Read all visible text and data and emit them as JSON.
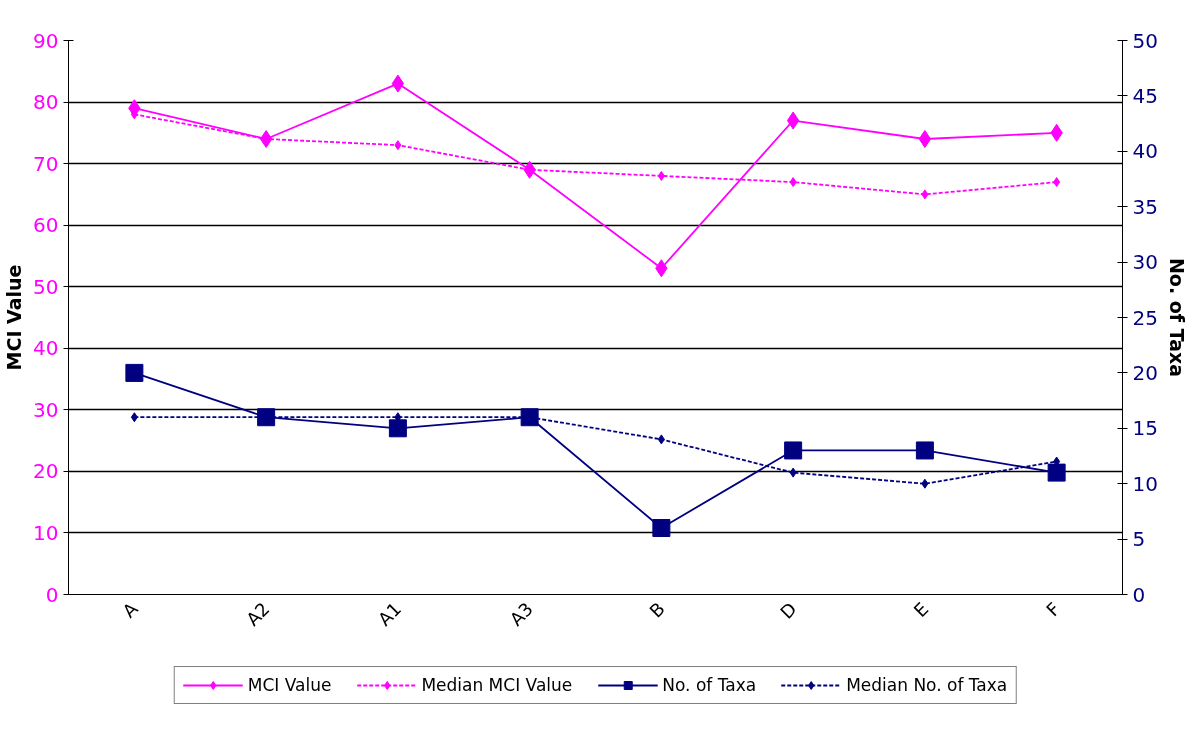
{
  "chart_data": {
    "type": "line",
    "categories": [
      "A",
      "A2",
      "A1",
      "A3",
      "B",
      "D",
      "E",
      "F"
    ],
    "series": [
      {
        "name": "MCI Value",
        "color": "#ff00ff",
        "values": [
          79,
          74,
          83,
          69,
          53,
          77,
          74,
          75
        ],
        "line_style": "solid",
        "marker": "diamond"
      },
      {
        "name": "Median MCI Value",
        "color": "#ff00ff",
        "values": [
          78,
          74,
          73,
          69,
          68,
          67,
          65,
          67
        ],
        "line_style": "dashed",
        "marker": "diamond"
      },
      {
        "name": "No. of Taxa",
        "color": "#000080",
        "values": [
          20,
          16,
          15,
          16,
          6,
          13,
          13,
          11
        ],
        "axis": "y2",
        "line_style": "solid",
        "marker": "square"
      },
      {
        "name": "Median No. of Taxa",
        "color": "#000080",
        "values": [
          16,
          16,
          16,
          16,
          14,
          11,
          10,
          12
        ],
        "axis": "y2",
        "line_style": "dashed",
        "marker": "diamond"
      }
    ],
    "ylabel": "MCI Value",
    "y2label": "No. of Taxa",
    "ylim": [
      0,
      90
    ],
    "yticks": [
      0,
      10,
      20,
      30,
      40,
      50,
      60,
      70,
      80,
      90
    ],
    "y2lim": [
      0,
      50
    ],
    "y2ticks": [
      0,
      5,
      10,
      15,
      20,
      25,
      30,
      35,
      40,
      45,
      50
    ],
    "grid": "y",
    "legend": "bottom"
  }
}
